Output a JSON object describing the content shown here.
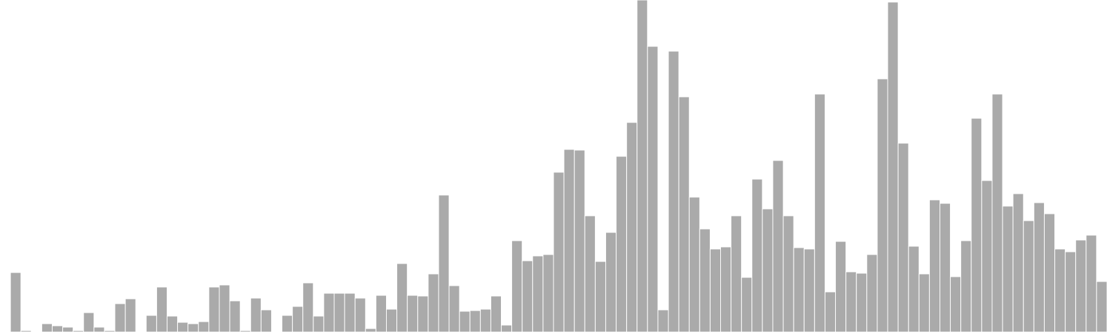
{
  "chart_data": {
    "type": "bar",
    "title": "",
    "xlabel": "",
    "ylabel": "",
    "ylim": [
      0,
      480
    ],
    "grid": false,
    "legend": "none",
    "bar_color": "#aaaaaa",
    "bar_edge_color": "#ffffff",
    "values": [
      0,
      86,
      2,
      1,
      12,
      9,
      7,
      2,
      28,
      7,
      2,
      41,
      48,
      0,
      24,
      65,
      23,
      14,
      12,
      15,
      65,
      68,
      45,
      2,
      49,
      32,
      0,
      24,
      37,
      71,
      23,
      56,
      56,
      56,
      49,
      5,
      53,
      33,
      99,
      53,
      52,
      84,
      198,
      67,
      30,
      31,
      33,
      52,
      10,
      132,
      103,
      110,
      112,
      231,
      264,
      263,
      168,
      102,
      144,
      254,
      303,
      480,
      413,
      32,
      406,
      340,
      195,
      149,
      120,
      123,
      168,
      79,
      221,
      178,
      248,
      168,
      122,
      120,
      344,
      58,
      131,
      87,
      85,
      112,
      366,
      477,
      273,
      124,
      84,
      191,
      186,
      80,
      132,
      309,
      219,
      344,
      182,
      200,
      161,
      187,
      171,
      120,
      116,
      133,
      140,
      73
    ]
  }
}
